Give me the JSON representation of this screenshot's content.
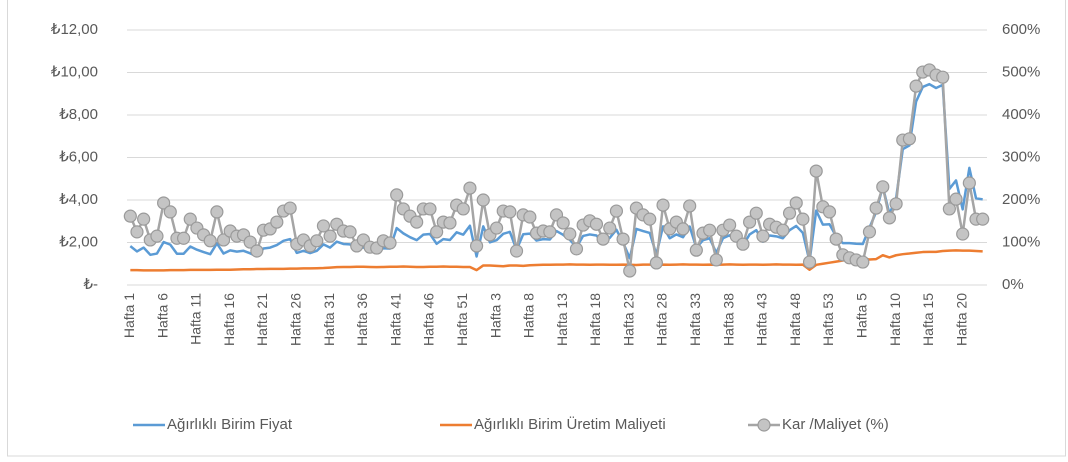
{
  "chart_data": {
    "type": "line",
    "categories": [
      "Hafta 1",
      null,
      null,
      null,
      null,
      "Hafta 6",
      null,
      null,
      null,
      null,
      "Hafta 11",
      null,
      null,
      null,
      null,
      "Hafta 16",
      null,
      null,
      null,
      null,
      "Hafta 21",
      null,
      null,
      null,
      null,
      "Hafta 26",
      null,
      null,
      null,
      null,
      "Hafta 31",
      null,
      null,
      null,
      null,
      "Hafta 36",
      null,
      null,
      null,
      null,
      "Hafta 41",
      null,
      null,
      null,
      null,
      "Hafta 46",
      null,
      null,
      null,
      null,
      "Hafta 51",
      null,
      null,
      null,
      null,
      "Hafta 3",
      null,
      null,
      null,
      null,
      "Hafta 8",
      null,
      null,
      null,
      null,
      "Hafta 13",
      null,
      null,
      null,
      null,
      "Hafta 18",
      null,
      null,
      null,
      null,
      "Hafta 23",
      null,
      null,
      null,
      null,
      "Hafta 28",
      null,
      null,
      null,
      null,
      "Hafta 33",
      null,
      null,
      null,
      null,
      "Hafta 38",
      null,
      null,
      null,
      null,
      "Hafta 43",
      null,
      null,
      null,
      null,
      "Hafta 48",
      null,
      null,
      null,
      null,
      "Hafta 53",
      null,
      null,
      null,
      null,
      "Hafta 5",
      null,
      null,
      null,
      null,
      "Hafta 10",
      null,
      null,
      null,
      null,
      "Hafta 15",
      null,
      null,
      null,
      null,
      "Hafta 20",
      null,
      null,
      null
    ],
    "series": [
      {
        "name": "Ağırlıklı Birim Fiyat",
        "color": "#5b9bd5",
        "values": [
          1.83,
          1.58,
          1.76,
          1.42,
          1.48,
          2.02,
          1.9,
          1.47,
          1.47,
          1.81,
          1.66,
          1.55,
          1.45,
          1.96,
          1.48,
          1.63,
          1.57,
          1.61,
          1.49,
          1.35,
          1.72,
          1.76,
          1.88,
          2.08,
          2.16,
          1.51,
          1.61,
          1.5,
          1.61,
          1.91,
          1.76,
          2.04,
          1.93,
          1.91,
          1.65,
          1.77,
          1.61,
          1.57,
          1.73,
          1.71,
          2.68,
          2.43,
          2.25,
          2.11,
          2.37,
          2.4,
          1.94,
          2.16,
          2.12,
          2.48,
          2.37,
          2.79,
          1.34,
          2.76,
          2.01,
          2.11,
          2.41,
          2.5,
          1.66,
          2.39,
          2.42,
          2.09,
          2.16,
          2.14,
          2.54,
          2.36,
          2.13,
          1.78,
          2.31,
          2.38,
          2.33,
          2.0,
          2.22,
          2.6,
          2.0,
          1.26,
          2.64,
          2.54,
          2.45,
          1.44,
          2.76,
          2.2,
          2.38,
          2.25,
          2.75,
          1.75,
          2.11,
          2.2,
          1.51,
          2.2,
          2.34,
          2.06,
          1.86,
          2.38,
          2.58,
          2.04,
          2.33,
          2.29,
          2.2,
          2.58,
          2.78,
          2.45,
          1.11,
          3.5,
          2.84,
          2.86,
          2.29,
          1.97,
          1.97,
          1.94,
          1.93,
          2.7,
          3.43,
          4.63,
          3.35,
          4.07,
          6.39,
          6.57,
          8.63,
          9.32,
          9.45,
          9.27,
          9.42,
          4.52,
          4.92,
          3.56,
          5.51,
          4.08,
          4.03
        ]
      },
      {
        "name": "Ağırlıklı Birim Üretim Maliyeti",
        "color": "#ed7d31",
        "values": [
          0.7,
          0.7,
          0.69,
          0.69,
          0.69,
          0.69,
          0.7,
          0.7,
          0.7,
          0.71,
          0.71,
          0.71,
          0.71,
          0.72,
          0.72,
          0.72,
          0.73,
          0.74,
          0.74,
          0.75,
          0.75,
          0.76,
          0.76,
          0.76,
          0.77,
          0.77,
          0.78,
          0.78,
          0.79,
          0.8,
          0.82,
          0.84,
          0.85,
          0.85,
          0.86,
          0.86,
          0.85,
          0.84,
          0.85,
          0.86,
          0.86,
          0.87,
          0.86,
          0.85,
          0.85,
          0.86,
          0.86,
          0.87,
          0.86,
          0.86,
          0.85,
          0.85,
          0.7,
          0.92,
          0.92,
          0.9,
          0.88,
          0.92,
          0.92,
          0.9,
          0.93,
          0.94,
          0.95,
          0.95,
          0.96,
          0.96,
          0.97,
          0.96,
          0.96,
          0.95,
          0.96,
          0.96,
          0.95,
          0.95,
          0.96,
          0.95,
          0.94,
          0.96,
          0.96,
          0.95,
          0.96,
          0.95,
          0.96,
          0.97,
          0.96,
          0.96,
          0.95,
          0.96,
          0.95,
          0.96,
          0.97,
          0.96,
          0.95,
          0.96,
          0.96,
          0.95,
          0.96,
          0.97,
          0.96,
          0.96,
          0.95,
          0.96,
          0.72,
          0.95,
          1.0,
          1.05,
          1.1,
          1.15,
          1.2,
          1.22,
          1.25,
          1.2,
          1.22,
          1.4,
          1.3,
          1.4,
          1.45,
          1.48,
          1.52,
          1.55,
          1.56,
          1.56,
          1.6,
          1.62,
          1.63,
          1.62,
          1.62,
          1.6,
          1.58
        ]
      },
      {
        "name": "Kar /Maliyet (%)",
        "color": "#a5a5a5",
        "axis": "y2",
        "marker": true,
        "values": [
          162,
          125,
          155,
          106,
          115,
          193,
          172,
          110,
          110,
          155,
          134,
          118,
          104,
          172,
          106,
          127,
          115,
          118,
          101,
          80,
          129,
          132,
          148,
          174,
          181,
          96,
          106,
          92,
          104,
          139,
          115,
          143,
          127,
          125,
          92,
          106,
          89,
          87,
          104,
          99,
          212,
          179,
          162,
          148,
          179,
          179,
          125,
          148,
          146,
          188,
          179,
          228,
          92,
          200,
          118,
          134,
          174,
          172,
          80,
          165,
          160,
          122,
          127,
          125,
          165,
          146,
          120,
          85,
          141,
          151,
          143,
          108,
          134,
          174,
          108,
          33,
          181,
          165,
          155,
          52,
          188,
          132,
          148,
          132,
          186,
          82,
          122,
          129,
          59,
          129,
          141,
          115,
          96,
          148,
          169,
          115,
          143,
          136,
          129,
          169,
          193,
          155,
          54,
          268,
          184,
          172,
          108,
          71,
          64,
          59,
          54,
          125,
          181,
          231,
          158,
          191,
          341,
          344,
          468,
          501,
          506,
          494,
          489,
          179,
          202,
          120,
          240,
          155,
          155
        ]
      }
    ],
    "ylim": [
      0,
      12
    ],
    "yticks": [
      {
        "value": 0,
        "label": "₺-"
      },
      {
        "value": 2,
        "label": "₺2,00"
      },
      {
        "value": 4,
        "label": "₺4,00"
      },
      {
        "value": 6,
        "label": "₺6,00"
      },
      {
        "value": 8,
        "label": "₺8,00"
      },
      {
        "value": 10,
        "label": "₺10,00"
      },
      {
        "value": 12,
        "label": "₺12,00"
      }
    ],
    "y2lim": [
      0,
      600
    ],
    "y2ticks": [
      {
        "value": 0,
        "label": "0%"
      },
      {
        "value": 100,
        "label": "100%"
      },
      {
        "value": 200,
        "label": "200%"
      },
      {
        "value": 300,
        "label": "300%"
      },
      {
        "value": 400,
        "label": "400%"
      },
      {
        "value": 500,
        "label": "500%"
      },
      {
        "value": 600,
        "label": "600%"
      }
    ],
    "grid": true,
    "legend": "bottom"
  }
}
